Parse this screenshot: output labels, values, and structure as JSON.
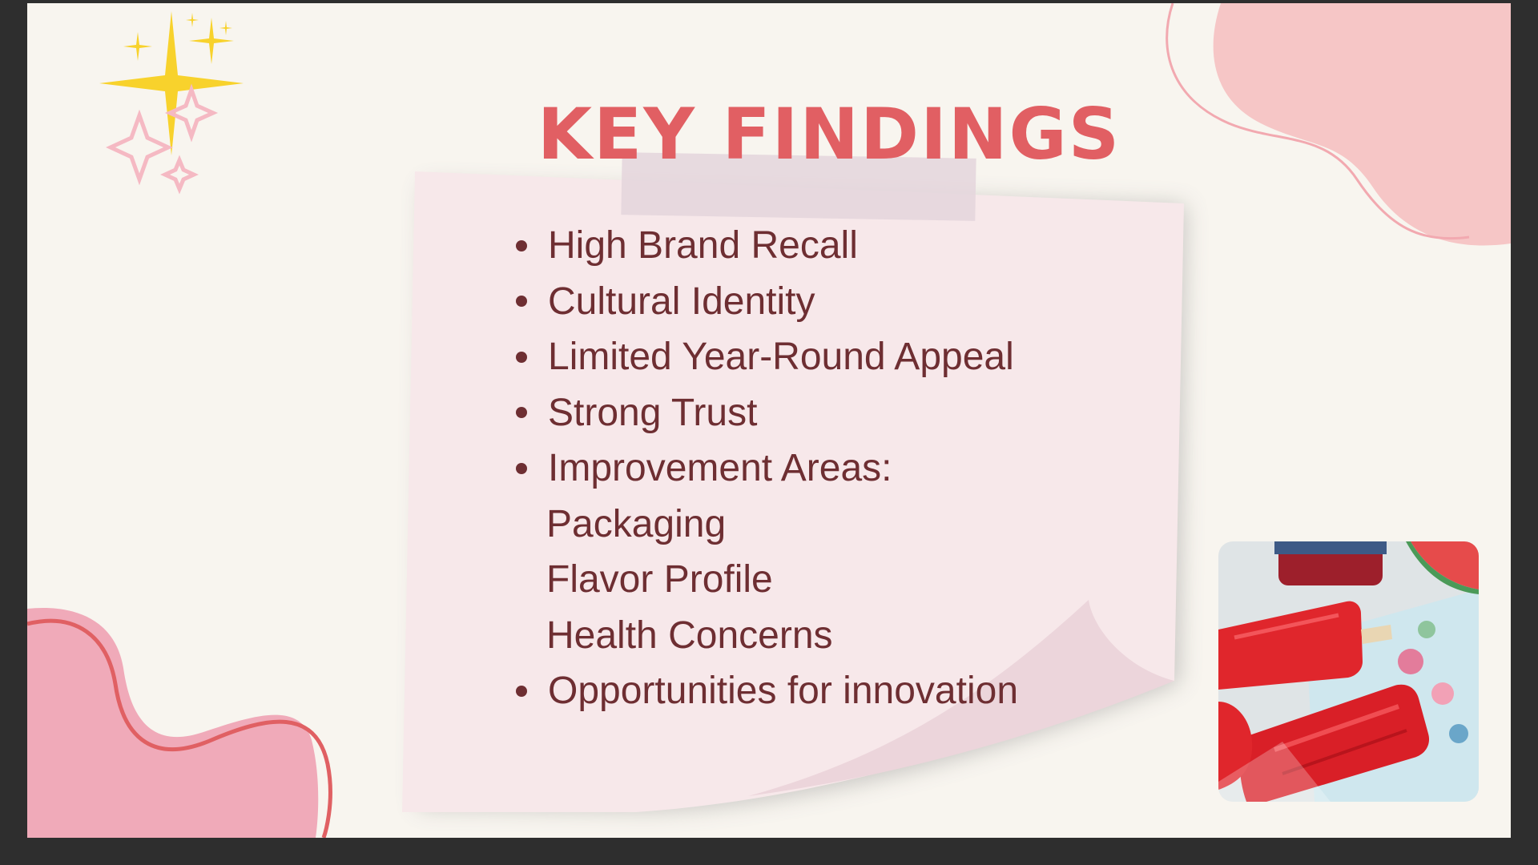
{
  "slide": {
    "title": "KEY FINDINGS",
    "bullets": [
      {
        "label": "High Brand Recall"
      },
      {
        "label": "Cultural Identity"
      },
      {
        "label": "Limited Year-Round Appeal"
      },
      {
        "label": "Strong Trust"
      },
      {
        "label": "Improvement Areas:"
      },
      {
        "label": "Opportunities for innovation"
      }
    ],
    "improvement_areas": [
      "Packaging",
      "Flavor Profile",
      "Health Concerns"
    ]
  },
  "colors": {
    "title": "#e15f63",
    "body_text": "#6e2e32",
    "background": "#f8f5ef",
    "note": "#f7e8ea",
    "blob_pink": "#f5c6c6",
    "star_yellow": "#f8d22c"
  },
  "icons": [
    "sparkle-icon",
    "popsicle-photo"
  ]
}
